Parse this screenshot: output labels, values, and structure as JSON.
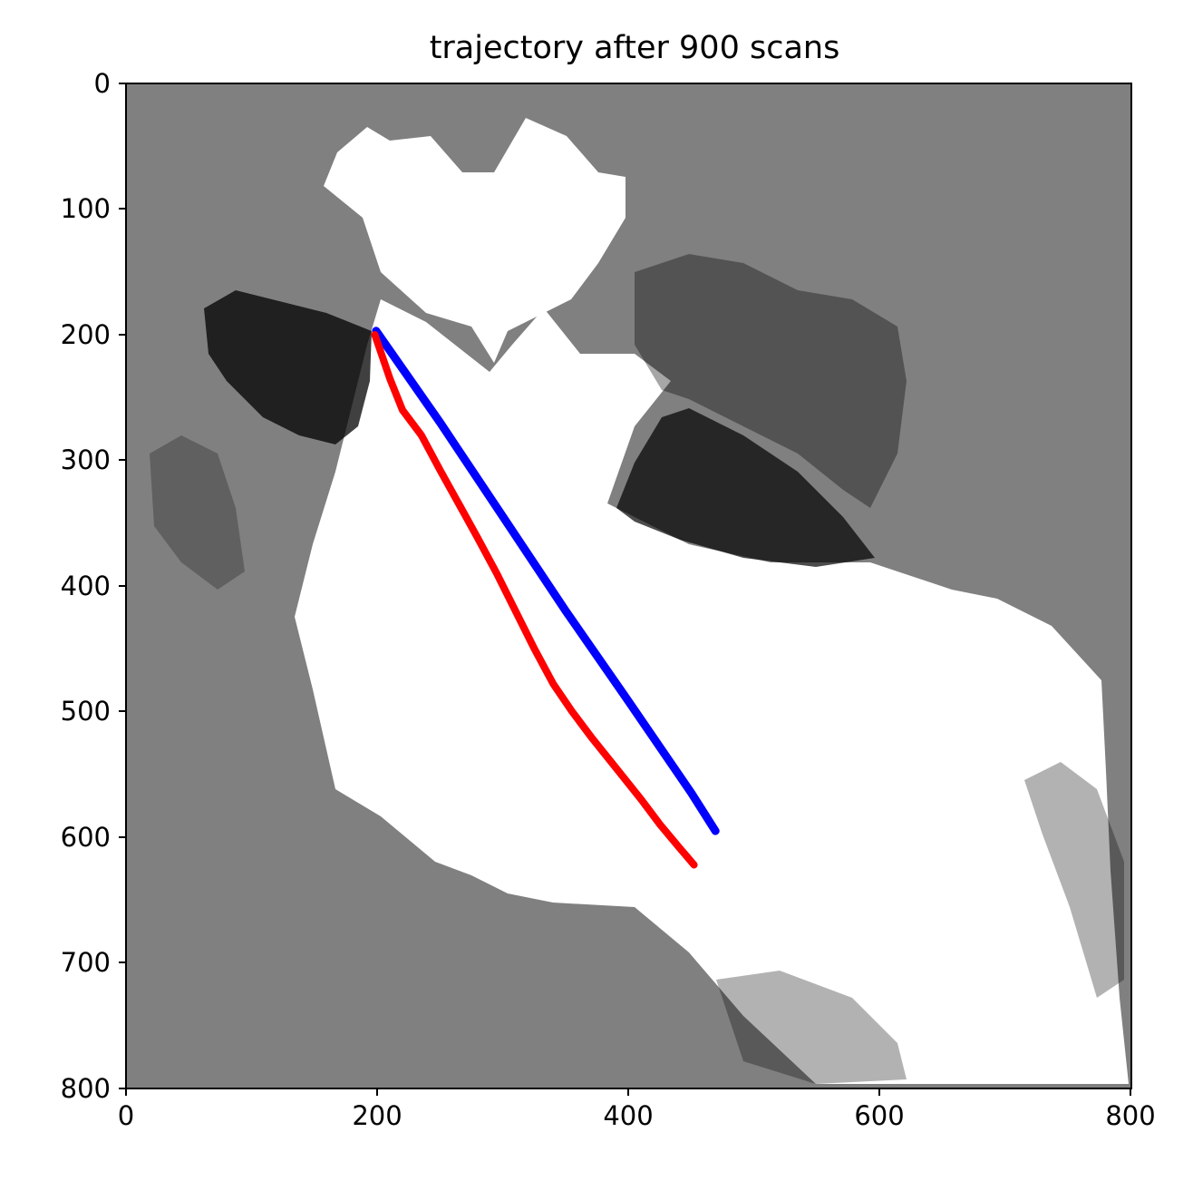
{
  "chart_data": {
    "type": "line",
    "title": "trajectory after 900 scans",
    "xlabel": "",
    "ylabel": "",
    "xlim": [
      0,
      800
    ],
    "ylim": [
      800,
      0
    ],
    "y_axis_inverted": true,
    "xticks": [
      "0",
      "200",
      "400",
      "600",
      "800"
    ],
    "yticks": [
      "0",
      "100",
      "200",
      "300",
      "400",
      "500",
      "600",
      "700",
      "800"
    ],
    "grid": false,
    "legend": "none",
    "background": "occupancy grid map (gray = unknown, white = free, black = occupied)",
    "colors": {
      "unknown": "#808080",
      "free": "#ffffff",
      "occupied": "#000000",
      "estimated_trajectory": "#ff0000",
      "true_trajectory": "#0000ff"
    },
    "series": [
      {
        "color": "#0000ff",
        "x": [
          199,
          250,
          300,
          350,
          400,
          450,
          469
        ],
        "y": [
          197,
          270,
          345,
          420,
          492,
          565,
          595
        ]
      },
      {
        "color": "#ff0000",
        "x": [
          198,
          210,
          220,
          235,
          250,
          265,
          280,
          295,
          310,
          325,
          340,
          355,
          370,
          390,
          410,
          425,
          440,
          452
        ],
        "y": [
          200,
          235,
          260,
          280,
          308,
          335,
          362,
          390,
          420,
          450,
          478,
          500,
          520,
          545,
          570,
          590,
          608,
          622
        ]
      }
    ]
  }
}
